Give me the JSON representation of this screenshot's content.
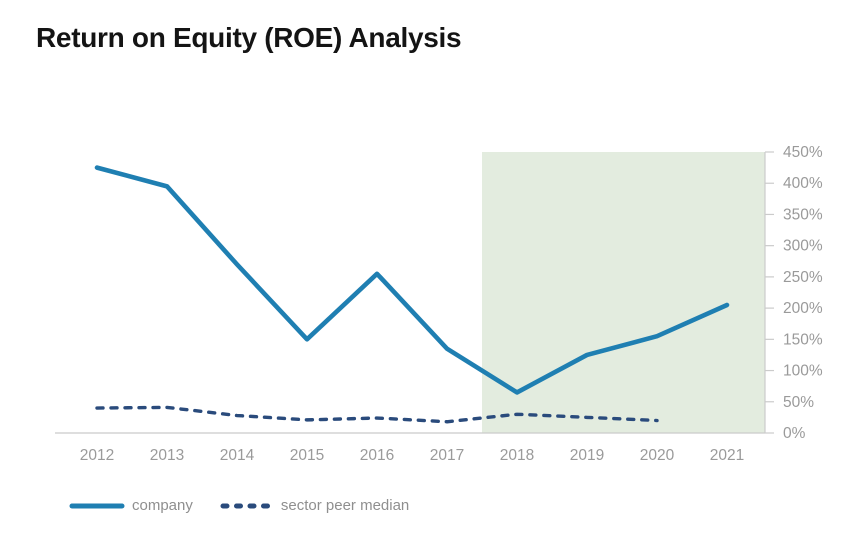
{
  "title": "Return on Equity (ROE) Analysis",
  "chart_data": {
    "type": "line",
    "title": "Return on Equity (ROE) Analysis",
    "x": [
      "2012",
      "2013",
      "2014",
      "2015",
      "2016",
      "2017",
      "2018",
      "2019",
      "2020",
      "2021"
    ],
    "series": [
      {
        "name": "company",
        "style": "solid",
        "color": "#1f7fb2",
        "values": [
          425,
          395,
          270,
          150,
          255,
          135,
          65,
          125,
          155,
          205
        ]
      },
      {
        "name": "sector peer median",
        "style": "dashed",
        "color": "#2a4b7c",
        "values": [
          40,
          41,
          28,
          21,
          24,
          18,
          30,
          25,
          20,
          null
        ]
      }
    ],
    "xlabel": "",
    "ylabel": "",
    "ylim": [
      0,
      450
    ],
    "y_tick_step": 50,
    "y_tick_labels": [
      "0%",
      "50%",
      "100%",
      "150%",
      "200%",
      "250%",
      "300%",
      "350%",
      "400%",
      "450%"
    ],
    "y_axis_side": "right",
    "grid": false,
    "legend_position": "bottom-left",
    "highlight_region": {
      "x_start_year": 2017.5,
      "x_end": "right-axis",
      "color": "#e3ecdf"
    }
  },
  "colors": {
    "axis_line": "#cbcbcb",
    "tick_label": "#9a9a9a",
    "legend_text": "#8f8f8f",
    "title_text": "#141414",
    "background": "#ffffff"
  }
}
